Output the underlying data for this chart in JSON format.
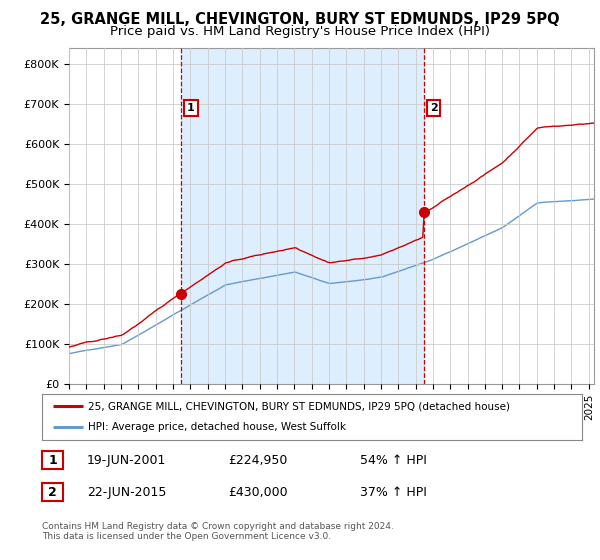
{
  "title": "25, GRANGE MILL, CHEVINGTON, BURY ST EDMUNDS, IP29 5PQ",
  "subtitle": "Price paid vs. HM Land Registry's House Price Index (HPI)",
  "ylabel_ticks": [
    "£0",
    "£100K",
    "£200K",
    "£300K",
    "£400K",
    "£500K",
    "£600K",
    "£700K",
    "£800K"
  ],
  "ytick_values": [
    0,
    100000,
    200000,
    300000,
    400000,
    500000,
    600000,
    700000,
    800000
  ],
  "ylim": [
    0,
    840000
  ],
  "xlim_start": 1995.0,
  "xlim_end": 2025.3,
  "sale1_x": 2001.47,
  "sale1_y": 224950,
  "sale2_x": 2015.47,
  "sale2_y": 430000,
  "sale1_date": "19-JUN-2001",
  "sale1_price": "£224,950",
  "sale1_hpi": "54% ↑ HPI",
  "sale2_date": "22-JUN-2015",
  "sale2_price": "£430,000",
  "sale2_hpi": "37% ↑ HPI",
  "legend_line1": "25, GRANGE MILL, CHEVINGTON, BURY ST EDMUNDS, IP29 5PQ (detached house)",
  "legend_line2": "HPI: Average price, detached house, West Suffolk",
  "footer": "Contains HM Land Registry data © Crown copyright and database right 2024.\nThis data is licensed under the Open Government Licence v3.0.",
  "line_color_red": "#cc0000",
  "line_color_blue": "#6699cc",
  "bg_color": "#ffffff",
  "grid_color": "#cccccc",
  "shade_color": "#ddeeff",
  "title_fontsize": 10.5,
  "subtitle_fontsize": 9.5
}
